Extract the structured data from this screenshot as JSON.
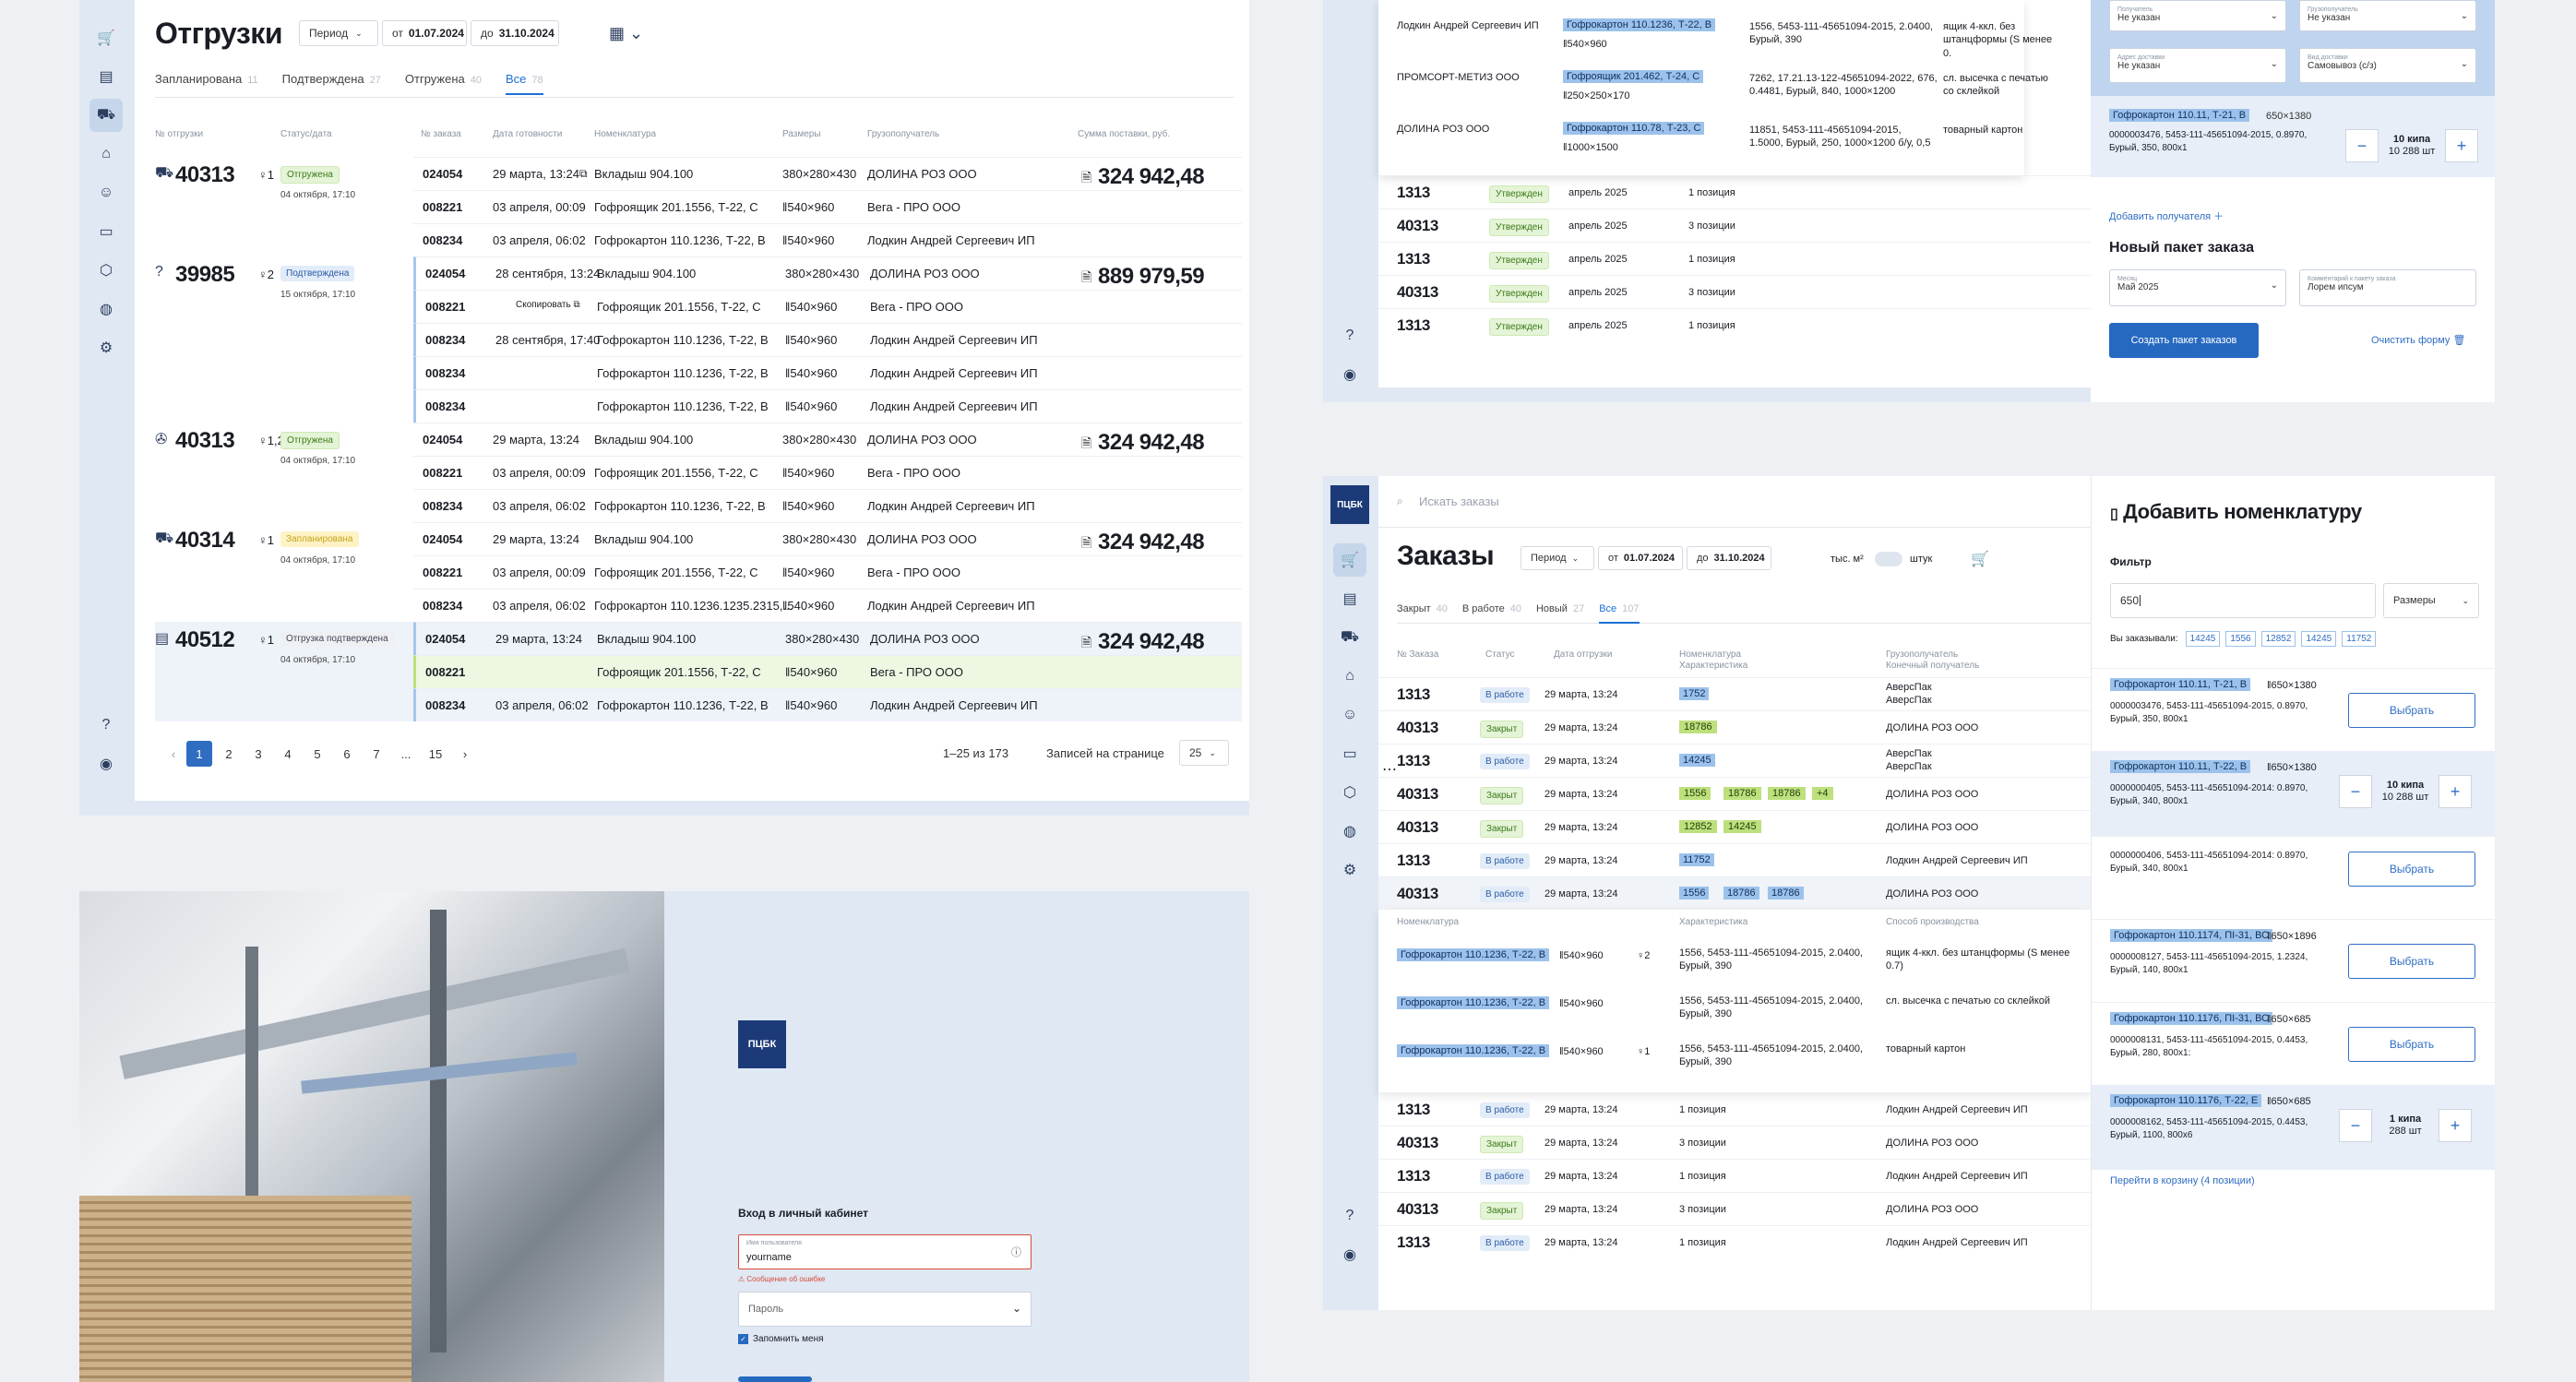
{
  "shipments": {
    "title": "Отгрузки",
    "period": "Период",
    "from_label": "от",
    "from": "01.07.2024",
    "to_label": "до",
    "to": "31.10.2024",
    "tabs": [
      {
        "label": "Запланирована",
        "count": "11"
      },
      {
        "label": "Подтверждена",
        "count": "27"
      },
      {
        "label": "Отгружена",
        "count": "40"
      },
      {
        "label": "Все",
        "count": "78"
      }
    ],
    "headers": [
      "№ отгрузки",
      "Статус/дата",
      "№ заказа",
      "Дата готовности",
      "Номенклатура",
      "Размеры",
      "Грузополучатель",
      "Сумма поставки, руб."
    ],
    "copied": "Скопировать",
    "groups": [
      {
        "num": "40313",
        "qty": "1",
        "status": "Отгружена",
        "date": "04 октября, 17:10",
        "sum": "324 942,48",
        "rows": [
          [
            "024054",
            "29 марта, 13:24",
            "Вкладыш 904.100",
            "380×280×430",
            "ДОЛИНА РОЗ ООО"
          ],
          [
            "008221",
            "03 апреля, 00:09",
            "Гофроящик 201.1556, Т-22, С",
            "540×960",
            "Вега - ПРО ООО"
          ],
          [
            "008234",
            "03 апреля, 06:02",
            "Гофрокартон 110.1236, Т-22, В",
            "540×960",
            "Лодкин Андрей Сергеевич ИП"
          ]
        ]
      },
      {
        "num": "39985",
        "qty": "2",
        "status": "Подтверждена",
        "date": "15 октября, 17:10",
        "sum": "889 979,59",
        "rows": [
          [
            "024054",
            "28 сентября, 13:24",
            "Вкладыш 904.100",
            "380×280×430",
            "ДОЛИНА РОЗ ООО"
          ],
          [
            "008221",
            "",
            "Гофроящик 201.1556, Т-22, С",
            "540×960",
            "Вега - ПРО ООО"
          ],
          [
            "008234",
            "28 сентября, 17:40",
            "Гофрокартон 110.1236, Т-22, В",
            "540×960",
            "Лодкин Андрей Сергеевич ИП"
          ],
          [
            "008234",
            "",
            "Гофрокартон 110.1236, Т-22, В",
            "540×960",
            "Лодкин Андрей Сергеевич ИП"
          ],
          [
            "008234",
            "",
            "Гофрокартон 110.1236, Т-22, В",
            "540×960",
            "Лодкин Андрей Сергеевич ИП"
          ]
        ]
      },
      {
        "num": "40313",
        "qty": "1,2",
        "status": "Отгружена",
        "date": "04 октября, 17:10",
        "sum": "324 942,48",
        "rows": [
          [
            "024054",
            "29 марта, 13:24",
            "Вкладыш 904.100",
            "380×280×430",
            "ДОЛИНА РОЗ ООО"
          ],
          [
            "008221",
            "03 апреля, 00:09",
            "Гофроящик 201.1556, Т-22, С",
            "540×960",
            "Вега - ПРО ООО"
          ],
          [
            "008234",
            "03 апреля, 06:02",
            "Гофрокартон 110.1236, Т-22, В",
            "540×960",
            "Лодкин Андрей Сергеевич ИП"
          ]
        ]
      },
      {
        "num": "40314",
        "qty": "1",
        "status": "Запланирована",
        "date": "04 октября, 17:10",
        "sum": "324 942,48",
        "rows": [
          [
            "024054",
            "29 марта, 13:24",
            "Вкладыш 904.100",
            "380×280×430",
            "ДОЛИНА РОЗ ООО"
          ],
          [
            "008221",
            "03 апреля, 00:09",
            "Гофроящик 201.1556, Т-22, С",
            "540×960",
            "Вега - ПРО ООО"
          ],
          [
            "008234",
            "03 апреля, 06:02",
            "Гофрокартон 110.1236.1235.2315,...",
            "540×960",
            "Лодкин Андрей Сергеевич ИП"
          ]
        ]
      },
      {
        "num": "40512",
        "qty": "1",
        "status": "Отгрузка подтверждена",
        "date": "04 октября, 17:10",
        "sum": "324 942,48",
        "rows": [
          [
            "024054",
            "29 марта, 13:24",
            "Вкладыш 904.100",
            "380×280×430",
            "ДОЛИНА РОЗ ООО"
          ],
          [
            "008221",
            "",
            "Гофроящик 201.1556, Т-22, С",
            "540×960",
            "Вега - ПРО ООО"
          ],
          [
            "008234",
            "03 апреля, 06:02",
            "Гофрокартон 110.1236, Т-22, В",
            "540×960",
            "Лодкин Андрей Сергеевич ИП"
          ]
        ]
      }
    ],
    "pages": [
      "1",
      "2",
      "3",
      "4",
      "5",
      "6",
      "7",
      "...",
      "15"
    ],
    "range": "1–25 из 173",
    "per_page_label": "Записей на странице",
    "per_page": "25"
  },
  "top_right": {
    "rows": [
      [
        "Лодкин Андрей Сергеевич ИП",
        "Гофрокартон 110.1236, Т-22, В",
        "540×960",
        "1556, 5453-111-45651094-2015, 2.0400, Бурый, 390",
        "ящик 4-ккл. без штанцформы (S менее 0."
      ],
      [
        "ПРОМСОРТ-МЕТИЗ ООО",
        "Гофроящик 201.462, Т-24, С",
        "250×250×170",
        "7262, 17.21.13-122-45651094-2022, 676, 0.4481, Бурый, 840, 1000×1200",
        "сл. высечка с печатью со склейкой"
      ],
      [
        "ДОЛИНА РОЗ ООО",
        "Гофрокартон 110.78, Т-23, С",
        "1000×1500",
        "11851, 5453-111-45651094-2015, 1.5000, Бурый, 250, 1000×1200 б/у, 0,5",
        "товарный картон"
      ]
    ],
    "orders": [
      [
        "1313",
        "Утвержден",
        "апрель 2025",
        "1 позиция"
      ],
      [
        "40313",
        "Утвержден",
        "апрель 2025",
        "3 позиции"
      ],
      [
        "1313",
        "Утвержден",
        "апрель 2025",
        "1 позиция"
      ],
      [
        "40313",
        "Утвержден",
        "апрель 2025",
        "3 позиции"
      ],
      [
        "1313",
        "Утвержден",
        "апрель 2025",
        "1 позиция"
      ]
    ],
    "sel1_label": "Получатель",
    "sel1": "Не указан",
    "sel2_label": "Грузополучатель",
    "sel2": "Не указан",
    "sel3_label": "Адрес доставки",
    "sel3": "Не указан",
    "sel4_label": "Вид доставки",
    "sel4": "Самовывоз (с/з)",
    "item_tag": "Гофрокартон 110.11, Т-21, В",
    "item_size": "650×1380",
    "item_desc": "0000003476, 5453-111-45651094-2015, 0.8970, Бурый, 350, 800x1",
    "item_qty": "10 кипа",
    "item_qty2": "10 288 шт",
    "add_recipient": "Добавить получателя",
    "new_pkg": "Новый пакет заказа",
    "month_label": "Месяц",
    "month": "Май 2025",
    "comment_label": "Комментарий к пакету заказа",
    "comment": "Лорем ипсум",
    "create_btn": "Создать пакет заказов",
    "clear": "Очистить форму"
  },
  "orders_page": {
    "search": "Искать заказы",
    "logo": "ПЦБК",
    "title": "Заказы",
    "period": "Период",
    "from_label": "от",
    "from": "01.07.2024",
    "to_label": "до",
    "to": "31.10.2024",
    "unit1": "тыс. м²",
    "unit2": "штук",
    "tabs": [
      {
        "label": "Закрыт",
        "count": "40"
      },
      {
        "label": "В работе",
        "count": "40"
      },
      {
        "label": "Новый",
        "count": "27"
      },
      {
        "label": "Все",
        "count": "107"
      }
    ],
    "headers": [
      "№ Заказа",
      "Статус",
      "Дата отгрузки",
      "Номенклатура",
      "Характеристика",
      "Грузополучатель",
      "Конечный получатель"
    ],
    "rows": [
      [
        "1313",
        "В работе",
        "29 марта, 13:24",
        [
          "1752"
        ],
        "АверсПак",
        "АверсПак"
      ],
      [
        "40313",
        "Закрыт",
        "29 марта, 13:24",
        [
          "18786"
        ],
        "ДОЛИНА РОЗ ООО",
        ""
      ],
      [
        "1313",
        "В работе",
        "29 марта, 13:24",
        [
          "14245"
        ],
        "АверсПак",
        "АверсПак"
      ],
      [
        "40313",
        "Закрыт",
        "29 марта, 13:24",
        [
          "1556",
          "18786",
          "18786",
          "+4"
        ],
        "ДОЛИНА РОЗ ООО",
        ""
      ],
      [
        "40313",
        "Закрыт",
        "29 марта, 13:24",
        [
          "12852",
          "14245"
        ],
        "ДОЛИНА РОЗ ООО",
        ""
      ],
      [
        "1313",
        "В работе",
        "29 марта, 13:24",
        [
          "11752"
        ],
        "Лодкин Андрей Сергеевич ИП",
        ""
      ],
      [
        "40313",
        "В работе",
        "29 марта, 13:24",
        [
          "1556",
          "18786",
          "18786"
        ],
        "ДОЛИНА РОЗ ООО",
        ""
      ]
    ],
    "sub_headers": [
      "Номенклатура",
      "Характеристика",
      "Способ производства"
    ],
    "sub_rows": [
      [
        "Гофрокартон 110.1236, Т-22, В",
        "540×960",
        "2",
        "1556, 5453-111-45651094-2015, 2.0400, Бурый, 390",
        "ящик 4-ккл. без штанцформы (S менее 0.7)"
      ],
      [
        "Гофрокартон 110.1236, Т-22, В",
        "540×960",
        "",
        "1556, 5453-111-45651094-2015, 2.0400, Бурый, 390",
        "сл. высечка с печатью со склейкой"
      ],
      [
        "Гофрокартон 110.1236, Т-22, В",
        "540×960",
        "1",
        "1556, 5453-111-45651094-2015, 2.0400, Бурый, 390",
        "товарный картон"
      ]
    ],
    "after_rows": [
      [
        "1313",
        "В работе",
        "29 марта, 13:24",
        "1 позиция",
        "Лодкин Андрей Сергеевич ИП"
      ],
      [
        "40313",
        "Закрыт",
        "29 марта, 13:24",
        "3 позиции",
        "ДОЛИНА РОЗ ООО"
      ],
      [
        "1313",
        "В работе",
        "29 марта, 13:24",
        "1 позиция",
        "Лодкин Андрей Сергеевич ИП"
      ],
      [
        "40313",
        "Закрыт",
        "29 марта, 13:24",
        "3 позиции",
        "ДОЛИНА РОЗ ООО"
      ],
      [
        "1313",
        "В работе",
        "29 марта, 13:24",
        "1 позиция",
        "Лодкин Андрей Сергеевич ИП"
      ]
    ],
    "panel": {
      "title": "Добавить номенклатуру",
      "filter_label": "Фильтр",
      "filter_value": "650",
      "sizes": "Размеры",
      "ordered_label": "Вы заказывали:",
      "ordered": [
        "14245",
        "1556",
        "12852",
        "14245",
        "11752"
      ],
      "items": [
        {
          "tag": "Гофрокартон 110.11, Т-21, В",
          "size": "650×1380",
          "desc": "0000003476, 5453-111-45651094-2015, 0.8970, Бурый, 350, 800x1",
          "action": "Выбрать"
        },
        {
          "tag": "Гофрокартон 110.11, Т-22, В",
          "size": "650×1380",
          "desc": "0000000405, 5453-111-45651094-2014: 0.8970, Бурый, 340, 800x1",
          "qty": "10 кипа",
          "qty2": "10 288 шт"
        },
        {
          "tag": "",
          "size": "",
          "desc": "0000000406, 5453-111-45651094-2014: 0.8970, Бурый, 340, 800x1",
          "action": "Выбрать"
        },
        {
          "tag": "Гофрокартон 110.1174, ПI-31, ВС",
          "size": "650×1896",
          "desc": "0000008127, 5453-111-45651094-2015, 1.2324, Бурый, 140, 800x1",
          "action": "Выбрать"
        },
        {
          "tag": "Гофрокартон 110.1176, ПI-31, ВС",
          "size": "650×685",
          "desc": "0000008131, 5453-111-45651094-2015, 0.4453, Бурый, 280, 800x1:",
          "action": "Выбрать"
        },
        {
          "tag": "Гофрокартон 110.1176, Т-22, Е",
          "size": "650×685",
          "desc": "0000008162, 5453-111-45651094-2015, 0.4453, Бурый, 1100, 800x6",
          "qty": "1 кипа",
          "qty2": "288 шт"
        }
      ],
      "cart_link": "Перейти в корзину (4 позиции)"
    }
  },
  "login": {
    "logo": "ПЦБК",
    "title": "Вход в личный кабинет",
    "user_label": "Имя пользователя",
    "user": "yourname",
    "error": "Сообщение об ошибке",
    "password": "Пароль",
    "remember": "Запомнить меня"
  }
}
